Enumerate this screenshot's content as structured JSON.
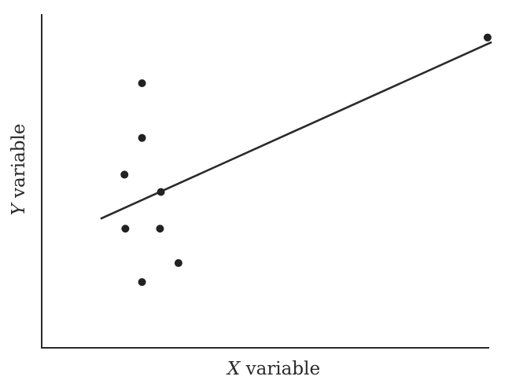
{
  "chart_data": {
    "type": "scatter",
    "title": "",
    "xlabel": {
      "var": "X",
      "rest": " variable"
    },
    "ylabel": {
      "var": "Y",
      "rest": " variable"
    },
    "xlim": [
      0,
      100
    ],
    "ylim": [
      0,
      100
    ],
    "grid": false,
    "legend": false,
    "series": [
      {
        "values": [
          {
            "x": 22.3,
            "y": 79.3
          },
          {
            "x": 22.3,
            "y": 62.9
          },
          {
            "x": 18.4,
            "y": 51.9
          },
          {
            "x": 26.5,
            "y": 46.7
          },
          {
            "x": 18.6,
            "y": 35.7
          },
          {
            "x": 26.3,
            "y": 35.7
          },
          {
            "x": 30.4,
            "y": 25.4
          },
          {
            "x": 22.3,
            "y": 19.7
          },
          {
            "x": 99.1,
            "y": 93.0
          }
        ]
      }
    ],
    "fit_line": {
      "x": [
        13.1,
        100.0
      ],
      "y": [
        38.7,
        91.6
      ]
    },
    "colors": {
      "point": "#222222",
      "line": "#2a2a2a",
      "axis": "#2a2a2a"
    }
  }
}
